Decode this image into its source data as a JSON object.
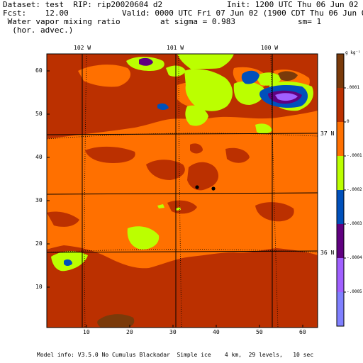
{
  "header": {
    "line1_left": "Dataset: test  RIP: rip20020604 d2",
    "line1_right": "Init: 1200 UTC Thu 06 Jun 02",
    "line2_left": "Fcst:    12.00",
    "line2_right": "Valid: 0000 UTC Fri 07 Jun 02 (1900 CDT Thu 06 Jun 02)",
    "line3_left": " Water vapor mixing ratio",
    "line3_mid": "at sigma = 0.983",
    "line3_right": "sm= 1",
    "line4_left": "  (hor. advec.)"
  },
  "map": {
    "lon_labels": [
      "102 W",
      "101 W",
      "100 W"
    ],
    "lat_labels": [
      "37 N",
      "36 N"
    ],
    "y_ticks": [
      "60",
      "50",
      "40",
      "30",
      "20",
      "10"
    ],
    "x_ticks": [
      "10",
      "20",
      "30",
      "40",
      "50",
      "60"
    ]
  },
  "colorbar": {
    "unit": "g kg⁻¹",
    "labels": [
      ".0001",
      "0",
      "-.0001",
      "-.0002",
      "-.0003",
      "-.0004",
      "-.0005"
    ],
    "colors": [
      "#7a3a0a",
      "#bb3000",
      "#ff7000",
      "#bbff00",
      "#0050bb",
      "#600080",
      "#a060ff",
      "#8080ff"
    ]
  },
  "footer": {
    "model_info": "Model info: V3.5.0 No Cumulus Blackadar  Simple ice    4 km,  29 levels,   10 sec"
  }
}
